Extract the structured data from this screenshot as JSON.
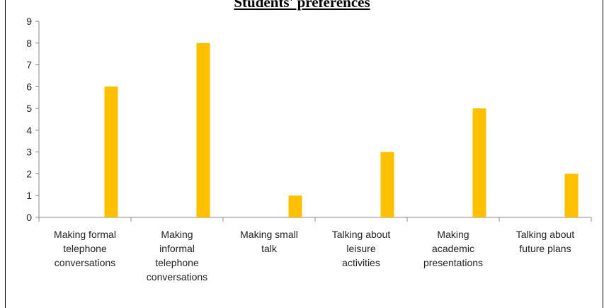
{
  "chart_data": {
    "type": "bar",
    "title": "Students' preferences",
    "categories": [
      [
        "Making formal",
        "telephone",
        "conversations"
      ],
      [
        "Making",
        "informal",
        "telephone",
        "conversations"
      ],
      [
        "Making small",
        "talk"
      ],
      [
        "Talking about",
        "leisure",
        "activities"
      ],
      [
        "Making",
        "academic",
        "presentations"
      ],
      [
        "Talking about",
        "future plans"
      ]
    ],
    "values": [
      6,
      8,
      1,
      3,
      5,
      2
    ],
    "ylim": [
      0,
      9
    ],
    "yticks": [
      0,
      1,
      2,
      3,
      4,
      5,
      6,
      7,
      8,
      9
    ],
    "bar_color": "#FFC000",
    "grid": false
  }
}
